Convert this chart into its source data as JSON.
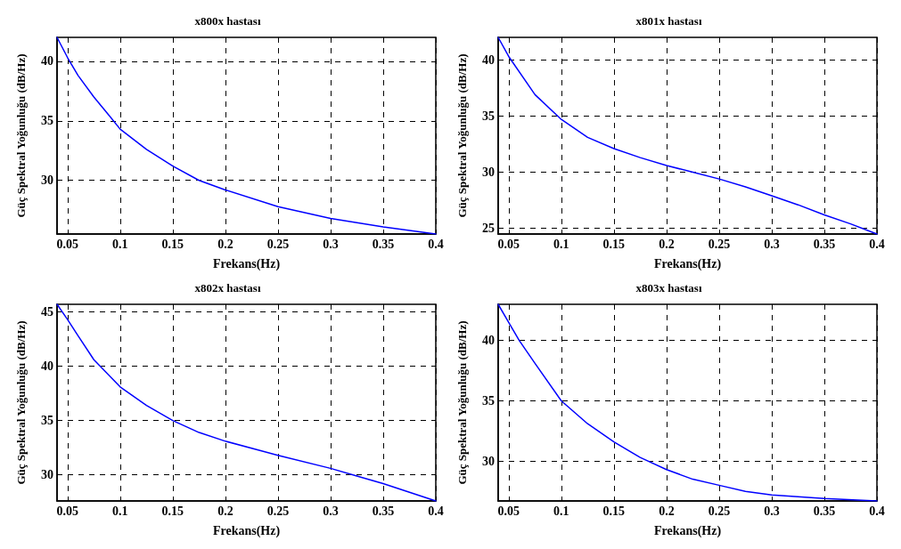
{
  "chart_data": [
    {
      "type": "line",
      "title": "x800x hastası",
      "xlabel": "Frekans(Hz)",
      "ylabel": "Güç Spektral Yoğunluğu (dB/Hz)",
      "xlim": [
        0.04,
        0.4
      ],
      "xticks": [
        0.05,
        0.1,
        0.15,
        0.2,
        0.25,
        0.3,
        0.35,
        0.4
      ],
      "ylim": [
        25.5,
        42
      ],
      "yticks": [
        30,
        35,
        40
      ],
      "grid": true,
      "marker": "none",
      "line_style": "solid",
      "x": [
        0.04,
        0.05,
        0.06,
        0.075,
        0.09,
        0.1,
        0.125,
        0.15,
        0.175,
        0.2,
        0.25,
        0.3,
        0.35,
        0.4
      ],
      "series": [
        {
          "color": "#0000ff",
          "values": [
            42,
            40.3,
            38.8,
            37.0,
            35.4,
            34.3,
            32.6,
            31.2,
            30.0,
            29.2,
            27.8,
            26.8,
            26.1,
            25.5
          ]
        }
      ]
    },
    {
      "type": "line",
      "title": "x801x hastası",
      "xlabel": "Frekans(Hz)",
      "ylabel": "Güç Spektral Yoğunluğu (dB/Hz)",
      "xlim": [
        0.04,
        0.4
      ],
      "xticks": [
        0.05,
        0.1,
        0.15,
        0.2,
        0.25,
        0.3,
        0.35,
        0.4
      ],
      "ylim": [
        24.5,
        42
      ],
      "yticks": [
        25,
        30,
        35,
        40
      ],
      "grid": true,
      "marker": "none",
      "line_style": "solid",
      "x": [
        0.04,
        0.05,
        0.075,
        0.1,
        0.125,
        0.15,
        0.175,
        0.2,
        0.225,
        0.25,
        0.275,
        0.3,
        0.325,
        0.35,
        0.375,
        0.4
      ],
      "series": [
        {
          "color": "#0000ff",
          "values": [
            42,
            40.3,
            36.9,
            34.7,
            33.1,
            32.1,
            31.3,
            30.6,
            30.0,
            29.4,
            28.7,
            27.9,
            27.1,
            26.2,
            25.4,
            24.5
          ]
        }
      ]
    },
    {
      "type": "line",
      "title": "x802x hastası",
      "xlabel": "Frekans(Hz)",
      "ylabel": "Güç Spektral Yoğunluğu (dB/Hz)",
      "xlim": [
        0.04,
        0.4
      ],
      "xticks": [
        0.05,
        0.1,
        0.15,
        0.2,
        0.25,
        0.3,
        0.35,
        0.4
      ],
      "ylim": [
        27.6,
        45.7
      ],
      "yticks": [
        30,
        35,
        40,
        45
      ],
      "grid": true,
      "marker": "none",
      "line_style": "solid",
      "x": [
        0.04,
        0.05,
        0.06,
        0.075,
        0.1,
        0.125,
        0.15,
        0.175,
        0.2,
        0.25,
        0.3,
        0.325,
        0.35,
        0.375,
        0.4
      ],
      "series": [
        {
          "color": "#0000ff",
          "values": [
            45.7,
            44.3,
            42.8,
            40.6,
            38.1,
            36.4,
            35.0,
            33.9,
            33.1,
            31.8,
            30.6,
            29.9,
            29.2,
            28.4,
            27.6
          ]
        }
      ]
    },
    {
      "type": "line",
      "title": "x803x hastası",
      "xlabel": "Frekans(Hz)",
      "ylabel": "Güç Spektral Yoğunluğu (dB/Hz)",
      "xlim": [
        0.04,
        0.4
      ],
      "xticks": [
        0.05,
        0.1,
        0.15,
        0.2,
        0.25,
        0.3,
        0.35,
        0.4
      ],
      "ylim": [
        26.7,
        43
      ],
      "yticks": [
        30,
        35,
        40
      ],
      "grid": true,
      "marker": "none",
      "line_style": "solid",
      "x": [
        0.04,
        0.05,
        0.06,
        0.075,
        0.1,
        0.125,
        0.15,
        0.175,
        0.2,
        0.225,
        0.25,
        0.275,
        0.3,
        0.35,
        0.4
      ],
      "series": [
        {
          "color": "#0000ff",
          "values": [
            43,
            41.5,
            40.0,
            38.1,
            35.0,
            33.1,
            31.6,
            30.3,
            29.3,
            28.5,
            28.0,
            27.5,
            27.2,
            26.9,
            26.7
          ]
        }
      ]
    }
  ]
}
